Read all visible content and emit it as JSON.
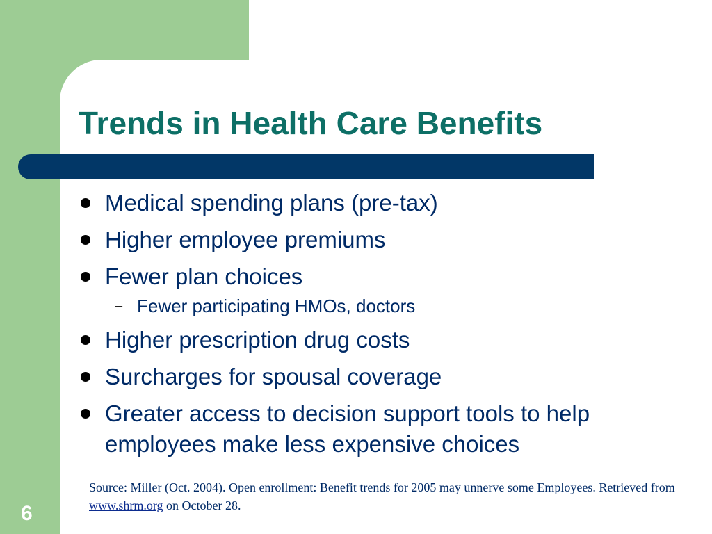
{
  "slide": {
    "title": "Trends in Health Care Benefits",
    "bullets": [
      "Medical spending plans (pre-tax)",
      "Higher employee premiums",
      "Fewer plan choices",
      "Higher prescription drug costs",
      "Surcharges for spousal coverage",
      "Greater access to decision support tools to help employees make less expensive choices"
    ],
    "sub_bullet": {
      "dash": "–",
      "text": "Fewer participating HMOs, doctors"
    },
    "source": {
      "prefix": "Source: Miller (Oct. 2004). Open enrollment: Benefit trends for 2005 may unnerve some Employees. Retrieved from ",
      "link_text": "www.shrm.org",
      "suffix": " on October 28."
    },
    "page_number": "6"
  },
  "colors": {
    "accent_green": "#9dcc94",
    "title_teal": "#0d6f66",
    "bar_navy": "#023767",
    "text_navy": "#002a66"
  }
}
